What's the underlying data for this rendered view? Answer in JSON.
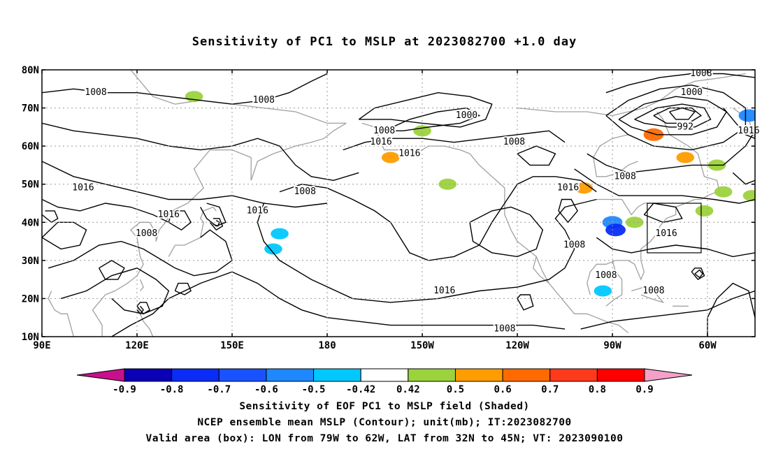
{
  "title": "Sensitivity of PC1 to MSLP at 2023082700 +1.0 day",
  "lat_labels": [
    "80N",
    "70N",
    "60N",
    "50N",
    "40N",
    "30N",
    "20N",
    "10N"
  ],
  "lat_values": [
    80,
    70,
    60,
    50,
    40,
    30,
    20,
    10
  ],
  "lon_labels": [
    "90E",
    "120E",
    "150E",
    "180",
    "150W",
    "120W",
    "90W",
    "60W"
  ],
  "lon_values": [
    90,
    120,
    150,
    180,
    210,
    240,
    270,
    300
  ],
  "extent": {
    "lon": [
      90,
      315
    ],
    "lat": [
      10,
      80
    ]
  },
  "contour_labels": [
    {
      "text": "1008",
      "lon": 107,
      "lat": 74
    },
    {
      "text": "1008",
      "lon": 160,
      "lat": 72
    },
    {
      "text": "1000",
      "lon": 224,
      "lat": 68
    },
    {
      "text": "1008",
      "lon": 198,
      "lat": 64
    },
    {
      "text": "1016",
      "lon": 197,
      "lat": 61
    },
    {
      "text": "1016",
      "lon": 206,
      "lat": 58
    },
    {
      "text": "1008",
      "lon": 239,
      "lat": 61
    },
    {
      "text": "1008",
      "lon": 173,
      "lat": 48
    },
    {
      "text": "1016",
      "lon": 103,
      "lat": 49
    },
    {
      "text": "1016",
      "lon": 130,
      "lat": 42
    },
    {
      "text": "1016",
      "lon": 158,
      "lat": 43
    },
    {
      "text": "1008",
      "lon": 123,
      "lat": 37
    },
    {
      "text": "1016",
      "lon": 256,
      "lat": 49
    },
    {
      "text": "1008",
      "lon": 258,
      "lat": 34
    },
    {
      "text": "1016",
      "lon": 287,
      "lat": 37
    },
    {
      "text": "1008",
      "lon": 268,
      "lat": 26
    },
    {
      "text": "1016",
      "lon": 217,
      "lat": 22
    },
    {
      "text": "1008",
      "lon": 236,
      "lat": 12
    },
    {
      "text": "1008",
      "lon": 283,
      "lat": 22
    },
    {
      "text": "1008",
      "lon": 298,
      "lat": 79
    },
    {
      "text": "1000",
      "lon": 295,
      "lat": 74
    },
    {
      "text": "992",
      "lon": 293,
      "lat": 65
    },
    {
      "text": "1008",
      "lon": 274,
      "lat": 52
    },
    {
      "text": "1016",
      "lon": 313,
      "lat": 64
    }
  ],
  "sensitivity_patches": [
    {
      "lon": 138,
      "lat": 73,
      "v": 0.45
    },
    {
      "lon": 165,
      "lat": 37,
      "v": -0.46
    },
    {
      "lon": 163,
      "lat": 33,
      "v": -0.45
    },
    {
      "lon": 200,
      "lat": 57,
      "v": 0.5
    },
    {
      "lon": 210,
      "lat": 64,
      "v": 0.45
    },
    {
      "lon": 218,
      "lat": 50,
      "v": 0.45
    },
    {
      "lon": 261,
      "lat": 49,
      "v": 0.55
    },
    {
      "lon": 270,
      "lat": 40,
      "v": -0.6
    },
    {
      "lon": 271,
      "lat": 38,
      "v": -0.8
    },
    {
      "lon": 267,
      "lat": 22,
      "v": -0.5
    },
    {
      "lon": 277,
      "lat": 40,
      "v": 0.45
    },
    {
      "lon": 283,
      "lat": 63,
      "v": 0.6
    },
    {
      "lon": 293,
      "lat": 57,
      "v": 0.5
    },
    {
      "lon": 299,
      "lat": 43,
      "v": 0.45
    },
    {
      "lon": 303,
      "lat": 55,
      "v": 0.45
    },
    {
      "lon": 305,
      "lat": 48,
      "v": 0.45
    },
    {
      "lon": 313,
      "lat": 68,
      "v": -0.6
    },
    {
      "lon": 314,
      "lat": 47,
      "v": 0.45
    }
  ],
  "valid_box": {
    "lon": [
      281,
      298
    ],
    "lat": [
      32,
      45
    ]
  },
  "colorbar": {
    "labels": [
      "-0.9",
      "-0.8",
      "-0.7",
      "-0.6",
      "-0.5",
      "-0.42",
      "0.42",
      "0.5",
      "0.6",
      "0.7",
      "0.8",
      "0.9"
    ],
    "colors": [
      "#0a00b4",
      "#0a2cf5",
      "#1a52ff",
      "#1e88ff",
      "#00c8ff",
      "#ffffff",
      "#9cd23c",
      "#ff9c00",
      "#ff6a00",
      "#ff3a1a",
      "#ff0000"
    ],
    "low_color": "#c8108c",
    "high_color": "#f5a0c8"
  },
  "caption": {
    "line1": "Sensitivity of EOF PC1 to MSLP field (Shaded)",
    "line2": "NCEP ensemble mean MSLP (Contour); unit(mb); IT:2023082700",
    "line3": "Valid area (box): LON from 79W to 62W, LAT from 32N to 45N; VT: 2023090100"
  }
}
